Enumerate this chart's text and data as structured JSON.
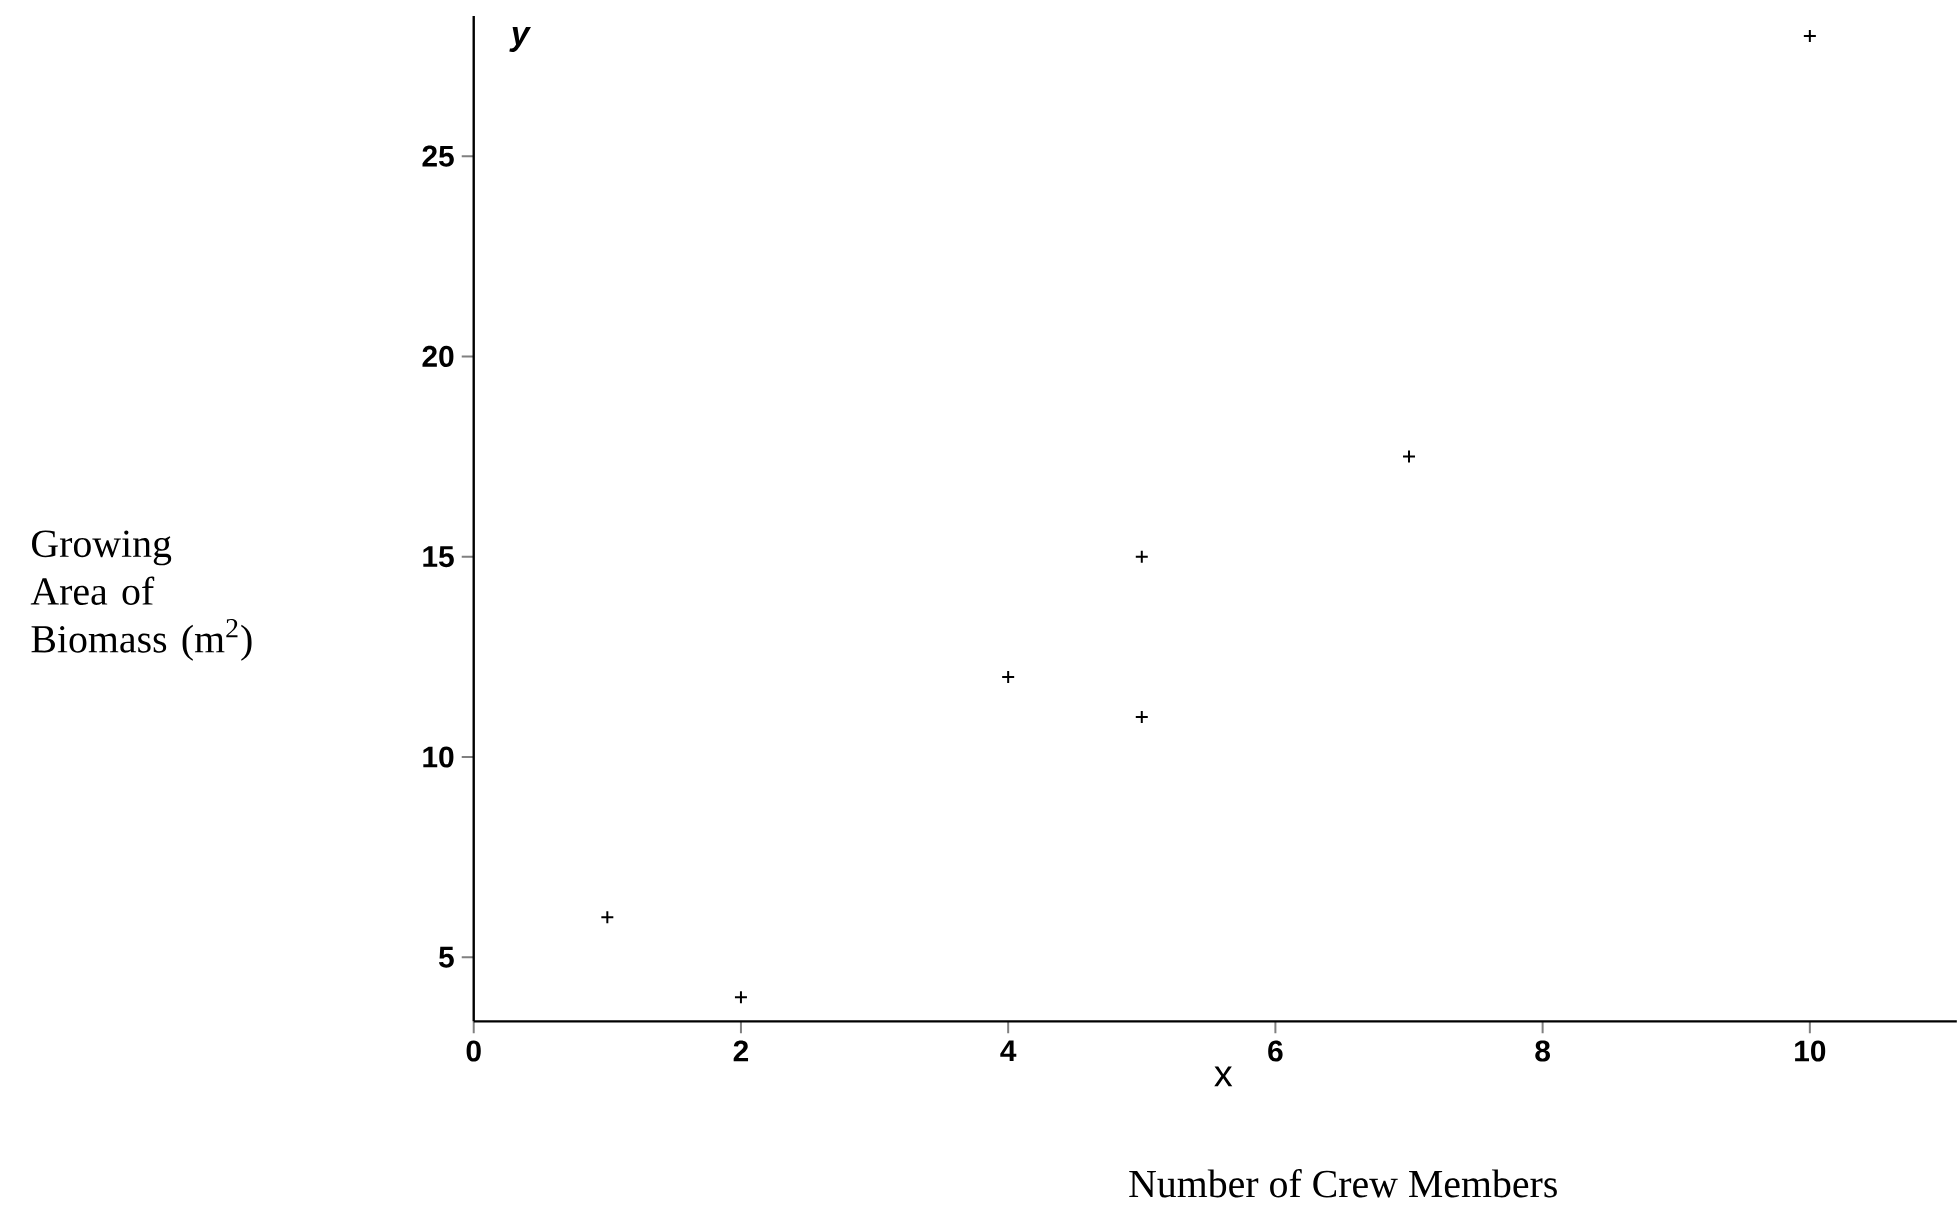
{
  "chart_data": {
    "type": "scatter",
    "xlabel": "Number of Crew Members",
    "ylabel": "Growing Area of Biomass (m$^{2}$)",
    "annotations": [
      "y",
      "x"
    ],
    "x": [
      1,
      2,
      4,
      5,
      5,
      7,
      10
    ],
    "values": [
      6,
      4,
      12,
      15,
      11,
      17.5,
      28
    ],
    "color": "#000000",
    "marker": "cross",
    "xlim": [
      0,
      11.1
    ],
    "ylim": [
      3.4,
      28.5
    ],
    "xticks": [
      0,
      2,
      4,
      6,
      8,
      10
    ],
    "yticks": [
      5,
      10,
      15,
      20,
      25
    ],
    "grid": false
  }
}
